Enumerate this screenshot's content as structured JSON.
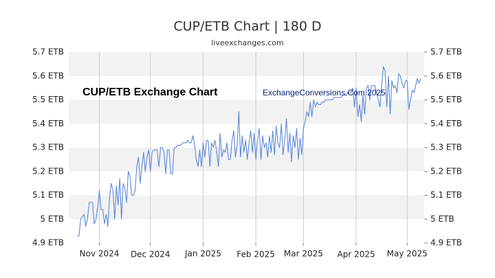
{
  "chart_data": {
    "type": "line",
    "title": "CUP/ETB Chart | 180 D",
    "subtitle": "liveexchanges.com",
    "annotations": [
      "CUP/ETB Exchange Chart",
      "ExchangeConversions.Com 2025"
    ],
    "color": "#5b87d9",
    "grid": true,
    "xlim": [
      -5,
      204
    ],
    "xticks": [
      {
        "value": 13,
        "label": "Nov 2024"
      },
      {
        "value": 43,
        "label": "Dec 2024"
      },
      {
        "value": 74,
        "label": "Jan 2025"
      },
      {
        "value": 105,
        "label": "Feb 2025"
      },
      {
        "value": 133,
        "label": "Mar 2025"
      },
      {
        "value": 164,
        "label": "Apr 2025"
      },
      {
        "value": 194,
        "label": "May 2025"
      }
    ],
    "ylim": [
      4.9,
      5.7
    ],
    "yticks": [
      {
        "value": 4.9,
        "label": "4.9 ETB"
      },
      {
        "value": 5.0,
        "label": "5 ETB"
      },
      {
        "value": 5.1,
        "label": "5.1 ETB"
      },
      {
        "value": 5.2,
        "label": "5.2 ETB"
      },
      {
        "value": 5.3,
        "label": "5.3 ETB"
      },
      {
        "value": 5.4,
        "label": "5.4 ETB"
      },
      {
        "value": 5.5,
        "label": "5.5 ETB"
      },
      {
        "value": 5.6,
        "label": "5.6 ETB"
      },
      {
        "value": 5.7,
        "label": "5.7 ETB"
      }
    ],
    "values": [
      4.93,
      4.93,
      5.0,
      5.01,
      5.02,
      4.97,
      5.0,
      5.07,
      5.07,
      5.07,
      4.98,
      5.0,
      5.05,
      5.12,
      5.04,
      5.04,
      4.98,
      5.02,
      4.97,
      5.09,
      5.15,
      5.12,
      5.0,
      5.14,
      5.06,
      5.17,
      5.0,
      5.15,
      5.13,
      5.07,
      5.2,
      5.18,
      5.1,
      5.1,
      5.12,
      5.22,
      5.26,
      5.15,
      5.22,
      5.28,
      5.2,
      5.26,
      5.29,
      5.2,
      5.28,
      5.29,
      5.29,
      5.29,
      5.22,
      5.3,
      5.3,
      5.28,
      5.19,
      5.29,
      5.29,
      5.19,
      5.19,
      5.3,
      5.3,
      5.31,
      5.31,
      5.31,
      5.32,
      5.32,
      5.32,
      5.33,
      5.32,
      5.32,
      5.35,
      5.31,
      5.25,
      5.22,
      5.29,
      5.22,
      5.32,
      5.26,
      5.33,
      5.33,
      5.22,
      5.32,
      5.3,
      5.33,
      5.28,
      5.22,
      5.36,
      5.26,
      5.29,
      5.28,
      5.32,
      5.25,
      5.25,
      5.33,
      5.37,
      5.26,
      5.31,
      5.45,
      5.26,
      5.35,
      5.28,
      5.33,
      5.25,
      5.32,
      5.37,
      5.28,
      5.36,
      5.25,
      5.33,
      5.38,
      5.25,
      5.35,
      5.3,
      5.32,
      5.26,
      5.35,
      5.28,
      5.37,
      5.27,
      5.39,
      5.32,
      5.3,
      5.4,
      5.27,
      5.33,
      5.42,
      5.28,
      5.36,
      5.24,
      5.35,
      5.3,
      5.38,
      5.25,
      5.34,
      5.27,
      5.38,
      5.41,
      5.45,
      5.43,
      5.49,
      5.43,
      5.5,
      5.47,
      5.49,
      5.48,
      5.48,
      5.49,
      5.49,
      5.5,
      5.5,
      5.5,
      5.5,
      5.5,
      5.51,
      5.51,
      5.51,
      5.51,
      5.51,
      5.52,
      5.52,
      5.52,
      5.53,
      5.53,
      5.53,
      5.55,
      5.47,
      5.55,
      5.43,
      5.48,
      5.41,
      5.52,
      5.44,
      5.55,
      5.56,
      5.5,
      5.56,
      5.56,
      5.56,
      5.53,
      5.5,
      5.47,
      5.56,
      5.64,
      5.62,
      5.47,
      5.6,
      5.44,
      5.58,
      5.55,
      5.56,
      5.53,
      5.61,
      5.6,
      5.57,
      5.55,
      5.58,
      5.58,
      5.46,
      5.5,
      5.54,
      5.53,
      5.56,
      5.59,
      5.57,
      5.59
    ]
  }
}
